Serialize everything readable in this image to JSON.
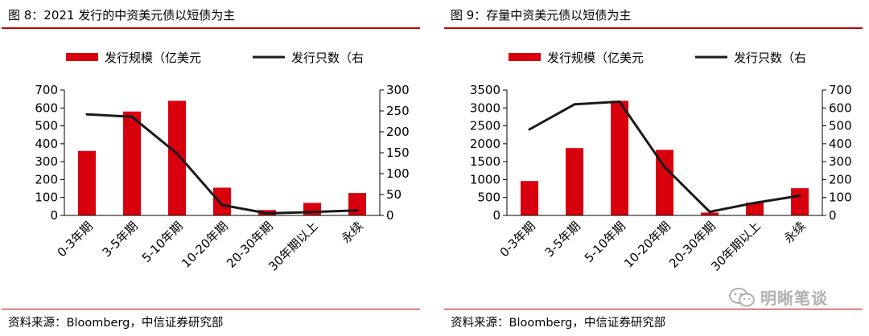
{
  "watermark": {
    "text": "明晰笔谈",
    "icon": "wechat-icon"
  },
  "panels": [
    {
      "title": "图 8：2021 发行的中资美元债以短债为主",
      "source": "资料来源：Bloomberg，中信证券研究部"
    },
    {
      "title": "图 9：存量中资美元债以短债为主",
      "source": "资料来源：Bloomberg，中信证券研究部"
    }
  ],
  "chart_data": [
    {
      "type": "bar",
      "categories": [
        "0-3年期",
        "3-5年期",
        "5-10年期",
        "10-20年期",
        "20-30年期",
        "30年期以上",
        "永续"
      ],
      "series": [
        {
          "name": "发行规模（亿美元",
          "type": "bar",
          "axis": "left",
          "color": "#d9000d",
          "values": [
            360,
            580,
            640,
            155,
            30,
            70,
            125
          ]
        },
        {
          "name": "发行只数（右",
          "type": "line",
          "axis": "right",
          "color": "#1a1a1a",
          "values": [
            242,
            236,
            148,
            25,
            5,
            8,
            12
          ]
        }
      ],
      "yticks_left": [
        "0",
        "100",
        "200",
        "300",
        "400",
        "500",
        "600",
        "700"
      ],
      "yticks_right": [
        "0",
        "50",
        "100",
        "150",
        "200",
        "250",
        "300"
      ],
      "ylim_left": [
        0,
        700
      ],
      "ylim_right": [
        0,
        300
      ],
      "legend_position": "top"
    },
    {
      "type": "bar",
      "categories": [
        "0-3年期",
        "3-5年期",
        "5-10年期",
        "10-20年期",
        "20-30年期",
        "30年期以上",
        "永续"
      ],
      "series": [
        {
          "name": "发行规模（亿美元",
          "type": "bar",
          "axis": "left",
          "color": "#d9000d",
          "values": [
            960,
            1880,
            3200,
            1830,
            80,
            360,
            760
          ]
        },
        {
          "name": "发行只数（右",
          "type": "line",
          "axis": "right",
          "color": "#1a1a1a",
          "values": [
            480,
            620,
            635,
            270,
            20,
            70,
            110
          ]
        }
      ],
      "yticks_left": [
        "0",
        "500",
        "1000",
        "1500",
        "2000",
        "2500",
        "3000",
        "3500"
      ],
      "yticks_right": [
        "0",
        "100",
        "200",
        "300",
        "400",
        "500",
        "600",
        "700"
      ],
      "ylim_left": [
        0,
        3500
      ],
      "ylim_right": [
        0,
        700
      ],
      "legend_position": "top"
    }
  ]
}
